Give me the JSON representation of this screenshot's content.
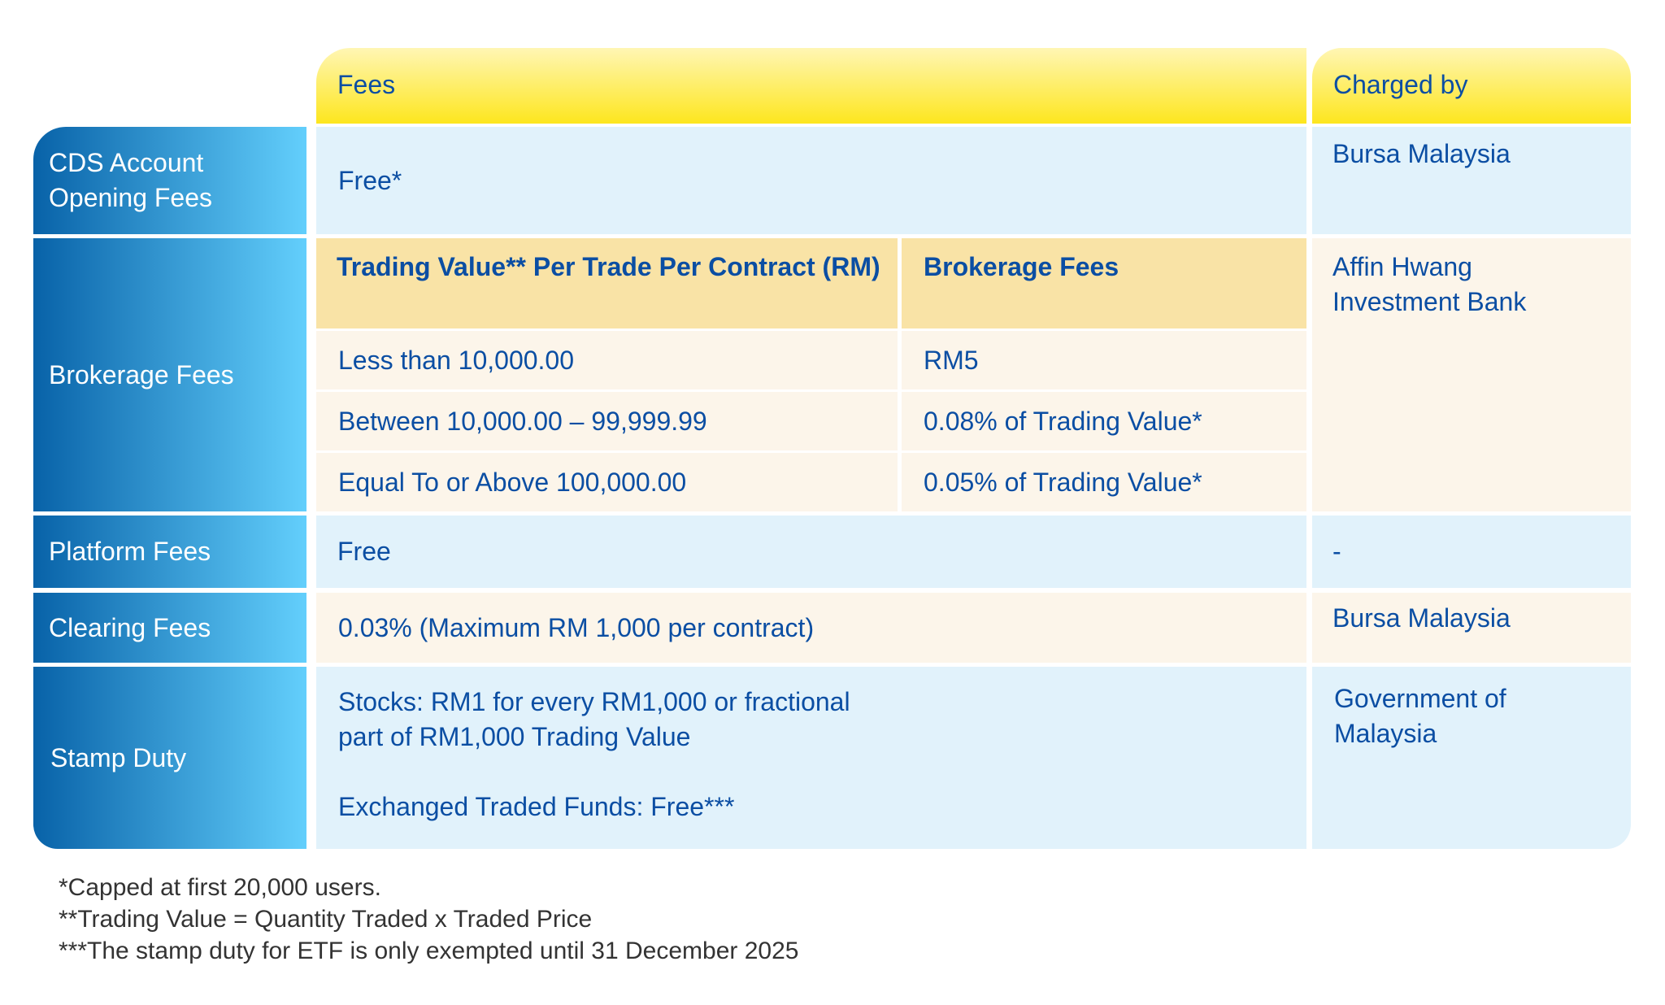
{
  "header": {
    "fees": "Fees",
    "charged_by": "Charged by"
  },
  "rows": {
    "cds": {
      "label": "CDS Account Opening Fees",
      "fee": "Free*",
      "charged_by": "Bursa Malaysia"
    },
    "brokerage": {
      "label": "Brokerage Fees",
      "col1": "Trading Value** Per Trade Per Contract (RM)",
      "col2": "Brokerage Fees",
      "tiers": [
        {
          "range": "Less than 10,000.00",
          "fee": "RM5"
        },
        {
          "range": "Between 10,000.00 – 99,999.99",
          "fee": "0.08% of Trading Value*"
        },
        {
          "range": "Equal To or Above 100,000.00",
          "fee": "0.05% of Trading Value*"
        }
      ],
      "charged_by": "Affin Hwang Investment Bank"
    },
    "platform": {
      "label": "Platform Fees",
      "fee": "Free",
      "charged_by": "-"
    },
    "clearing": {
      "label": "Clearing Fees",
      "fee": "0.03% (Maximum RM 1,000 per contract)",
      "charged_by": "Bursa Malaysia"
    },
    "stamp": {
      "label": "Stamp Duty",
      "fee_line1": "Stocks: RM1 for every RM1,000 or fractional part of RM1,000 Trading Value",
      "fee_line2": "Exchanged Traded Funds: Free***",
      "charged_by": "Government of Malaysia"
    }
  },
  "footnotes": [
    "*Capped at first 20,000 users.",
    "**Trading Value = Quantity Traded x Traded Price",
    "***The stamp duty for ETF is only exempted until 31 December 2025"
  ],
  "colors": {
    "text": "#0b4ea3",
    "header_yellow": "#fde61e",
    "label_blue_dark": "#0862a8",
    "label_blue_light": "#63cffc",
    "row_blue": "#e1f2fb",
    "row_cream": "#fcf5ea",
    "subheader": "#f9e3a6"
  }
}
